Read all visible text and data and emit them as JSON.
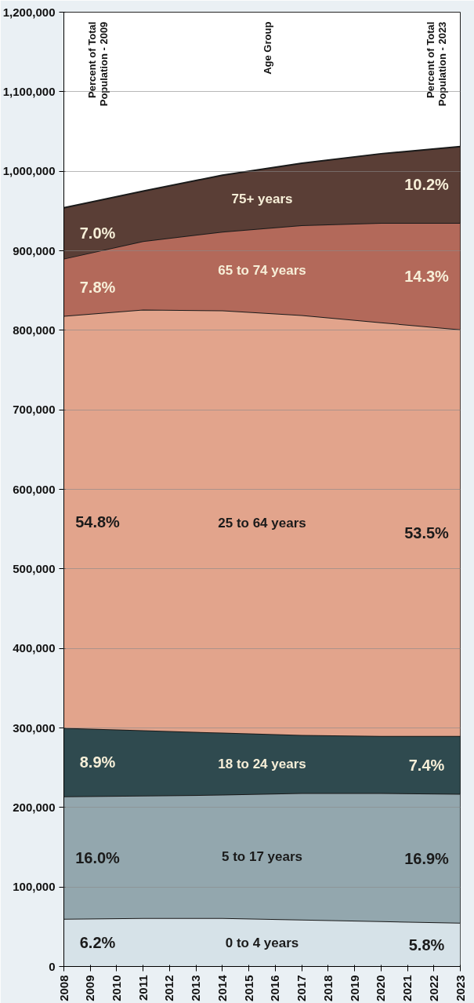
{
  "chart_data": {
    "type": "area",
    "stacked": true,
    "grid": "y",
    "x": [
      2008,
      2011,
      2014,
      2017,
      2020,
      2023
    ],
    "xlim": [
      2008,
      2023
    ],
    "xticks": [
      2008,
      2009,
      2010,
      2011,
      2012,
      2013,
      2014,
      2015,
      2016,
      2017,
      2018,
      2019,
      2020,
      2021,
      2022,
      2023
    ],
    "ylim": [
      0,
      1200000
    ],
    "yticks": [
      {
        "value": 0,
        "label": "0"
      },
      {
        "value": 100000,
        "label": "100,000"
      },
      {
        "value": 200000,
        "label": "200,000"
      },
      {
        "value": 300000,
        "label": "300,000"
      },
      {
        "value": 400000,
        "label": "400,000"
      },
      {
        "value": 500000,
        "label": "500,000"
      },
      {
        "value": 600000,
        "label": "600,000"
      },
      {
        "value": 700000,
        "label": "700,000"
      },
      {
        "value": 800000,
        "label": "800,000"
      },
      {
        "value": 900000,
        "label": "900,000"
      },
      {
        "value": 1000000,
        "label": "1,000,000"
      },
      {
        "value": 1100000,
        "label": "1,100,000"
      },
      {
        "value": 1200000,
        "label": "1,200,000"
      }
    ],
    "series": [
      {
        "name": "0 to 4 years",
        "color": "#d6e2e8",
        "values": [
          60000,
          61000,
          61000,
          59000,
          57000,
          55000
        ]
      },
      {
        "name": "5 to 17 years",
        "color": "#93a7ae",
        "values": [
          154000,
          154000,
          155000,
          159000,
          161000,
          162000
        ]
      },
      {
        "name": "18 to 24 years",
        "color": "#2f4a4f",
        "values": [
          86000,
          82000,
          78000,
          73000,
          72000,
          73000
        ]
      },
      {
        "name": "25 to 64 years",
        "color": "#e2a48c",
        "values": [
          518000,
          529000,
          531000,
          528000,
          520000,
          511000
        ]
      },
      {
        "name": "65 to 74 years",
        "color": "#b3695a",
        "values": [
          72000,
          86000,
          99000,
          113000,
          125000,
          134000
        ]
      },
      {
        "name": "75+ years",
        "color": "#5a3e36",
        "values": [
          64000,
          63000,
          71000,
          78000,
          87000,
          96000
        ]
      }
    ],
    "annotations": [
      "Percent of Total\nPopulation - 2009",
      "Age Group",
      "Percent of Total\nPopulation - 2023",
      "6.2%",
      "16.0%",
      "8.9%",
      "54.8%",
      "7.8%",
      "7.0%",
      "5.8%",
      "16.9%",
      "7.4%",
      "53.5%",
      "14.3%",
      "10.2%"
    ]
  }
}
